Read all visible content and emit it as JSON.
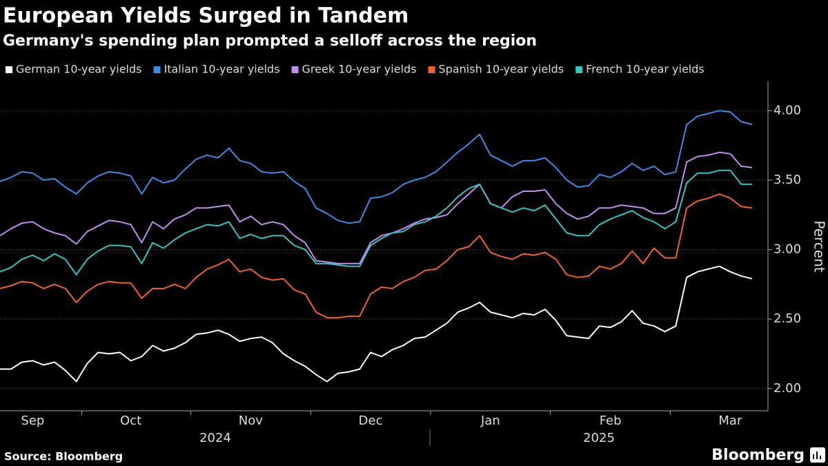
{
  "chart_data": {
    "type": "line",
    "title": "European Yields Surged in Tandem",
    "subtitle": "Germany's spending plan prompted a selloff across the region",
    "y_label": "Percent",
    "source": "Source: Bloomberg",
    "brand": "Bloomberg",
    "x_group_labels": [
      "2024",
      "2025"
    ],
    "categories": [
      null,
      null,
      null,
      "Sep",
      null,
      null,
      null,
      null,
      null,
      null,
      null,
      null,
      "Oct",
      null,
      null,
      null,
      null,
      null,
      null,
      null,
      null,
      null,
      null,
      "Nov",
      null,
      null,
      null,
      null,
      null,
      null,
      null,
      null,
      null,
      null,
      "Dec",
      null,
      null,
      null,
      null,
      null,
      null,
      null,
      null,
      null,
      null,
      "Jan",
      null,
      null,
      null,
      null,
      null,
      null,
      null,
      null,
      null,
      null,
      "Feb",
      null,
      null,
      null,
      null,
      null,
      null,
      null,
      null,
      null,
      null,
      "Mar",
      null,
      null
    ],
    "ylim": [
      1.84,
      4.21
    ],
    "yticks": [
      {
        "value": 2,
        "label": "2.00"
      },
      {
        "value": 2.5,
        "label": "2.50"
      },
      {
        "value": 3,
        "label": "3.00"
      },
      {
        "value": 3.5,
        "label": "3.50"
      },
      {
        "value": 4,
        "label": "4.00"
      }
    ],
    "grid": true,
    "series": [
      {
        "name": "German 10-year yields",
        "color": "#ffffff",
        "values": [
          2.14,
          2.14,
          2.19,
          2.2,
          2.17,
          2.19,
          2.13,
          2.05,
          2.18,
          2.26,
          2.25,
          2.26,
          2.2,
          2.23,
          2.31,
          2.27,
          2.29,
          2.33,
          2.39,
          2.4,
          2.42,
          2.39,
          2.34,
          2.36,
          2.37,
          2.33,
          2.25,
          2.2,
          2.16,
          2.1,
          2.05,
          2.11,
          2.12,
          2.14,
          2.26,
          2.23,
          2.28,
          2.31,
          2.36,
          2.37,
          2.42,
          2.47,
          2.55,
          2.58,
          2.62,
          2.55,
          2.53,
          2.51,
          2.54,
          2.53,
          2.57,
          2.49,
          2.38,
          2.37,
          2.36,
          2.45,
          2.44,
          2.48,
          2.56,
          2.47,
          2.45,
          2.41,
          2.45,
          2.8,
          2.84,
          2.86,
          2.88,
          2.84,
          2.81,
          2.79
        ]
      },
      {
        "name": "Italian 10-year yields",
        "color": "#3f8ce6",
        "values": [
          3.49,
          3.52,
          3.56,
          3.55,
          3.5,
          3.51,
          3.45,
          3.4,
          3.48,
          3.53,
          3.56,
          3.55,
          3.53,
          3.4,
          3.52,
          3.48,
          3.5,
          3.58,
          3.65,
          3.68,
          3.66,
          3.73,
          3.64,
          3.62,
          3.56,
          3.55,
          3.56,
          3.49,
          3.44,
          3.3,
          3.26,
          3.21,
          3.19,
          3.2,
          3.37,
          3.38,
          3.41,
          3.47,
          3.5,
          3.52,
          3.56,
          3.63,
          3.7,
          3.76,
          3.83,
          3.68,
          3.64,
          3.6,
          3.64,
          3.64,
          3.66,
          3.59,
          3.5,
          3.45,
          3.46,
          3.54,
          3.52,
          3.56,
          3.62,
          3.57,
          3.6,
          3.54,
          3.56,
          3.9,
          3.96,
          3.98,
          4.0,
          3.99,
          3.92,
          3.9
        ]
      },
      {
        "name": "Greek 10-year yields",
        "color": "#c48cf2",
        "values": [
          3.1,
          3.15,
          3.19,
          3.2,
          3.15,
          3.12,
          3.1,
          3.04,
          3.13,
          3.17,
          3.21,
          3.2,
          3.18,
          3.05,
          3.2,
          3.15,
          3.22,
          3.25,
          3.3,
          3.3,
          3.31,
          3.32,
          3.2,
          3.24,
          3.18,
          3.2,
          3.18,
          3.1,
          3.05,
          2.92,
          2.91,
          2.9,
          2.9,
          2.9,
          3.05,
          3.1,
          3.12,
          3.15,
          3.19,
          3.22,
          3.23,
          3.25,
          3.33,
          3.4,
          3.47,
          3.33,
          3.3,
          3.38,
          3.42,
          3.42,
          3.43,
          3.33,
          3.26,
          3.22,
          3.24,
          3.3,
          3.3,
          3.32,
          3.31,
          3.3,
          3.26,
          3.26,
          3.3,
          3.63,
          3.67,
          3.68,
          3.7,
          3.69,
          3.6,
          3.59
        ]
      },
      {
        "name": "Spanish 10-year yields",
        "color": "#f0642a",
        "values": [
          2.72,
          2.74,
          2.77,
          2.76,
          2.72,
          2.75,
          2.72,
          2.62,
          2.7,
          2.75,
          2.77,
          2.76,
          2.76,
          2.65,
          2.72,
          2.72,
          2.75,
          2.72,
          2.8,
          2.86,
          2.89,
          2.93,
          2.84,
          2.86,
          2.8,
          2.78,
          2.79,
          2.71,
          2.68,
          2.55,
          2.51,
          2.51,
          2.52,
          2.52,
          2.68,
          2.73,
          2.72,
          2.77,
          2.8,
          2.85,
          2.86,
          2.92,
          3.0,
          3.02,
          3.1,
          2.98,
          2.95,
          2.93,
          2.97,
          2.96,
          2.98,
          2.93,
          2.82,
          2.8,
          2.81,
          2.88,
          2.86,
          2.9,
          2.99,
          2.9,
          3.01,
          2.94,
          2.94,
          3.3,
          3.35,
          3.37,
          3.4,
          3.37,
          3.31,
          3.3
        ]
      },
      {
        "name": "French 10-year yields",
        "color": "#33c6c6",
        "values": [
          2.84,
          2.87,
          2.93,
          2.96,
          2.92,
          2.97,
          2.93,
          2.82,
          2.93,
          2.99,
          3.03,
          3.03,
          3.02,
          2.9,
          3.05,
          3.01,
          3.07,
          3.12,
          3.15,
          3.18,
          3.17,
          3.2,
          3.08,
          3.11,
          3.08,
          3.1,
          3.1,
          3.03,
          3.0,
          2.9,
          2.9,
          2.89,
          2.88,
          2.88,
          3.03,
          3.08,
          3.12,
          3.13,
          3.18,
          3.2,
          3.24,
          3.3,
          3.38,
          3.44,
          3.47,
          3.33,
          3.3,
          3.27,
          3.3,
          3.28,
          3.32,
          3.22,
          3.12,
          3.1,
          3.1,
          3.18,
          3.22,
          3.25,
          3.28,
          3.23,
          3.2,
          3.15,
          3.2,
          3.48,
          3.55,
          3.55,
          3.57,
          3.57,
          3.47,
          3.47
        ]
      }
    ]
  }
}
